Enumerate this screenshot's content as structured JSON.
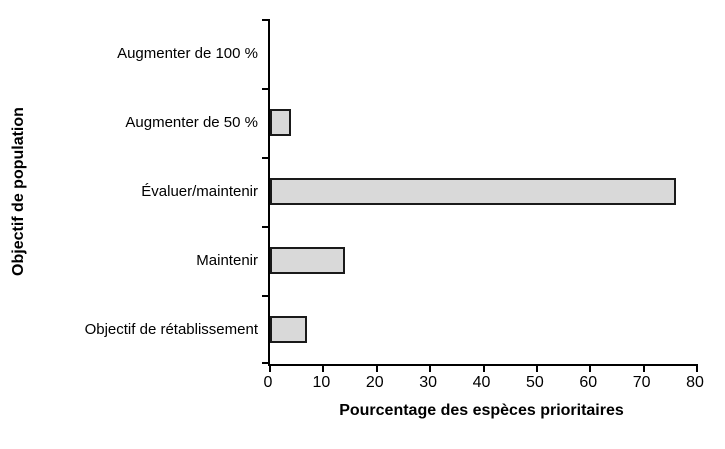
{
  "chart_data": {
    "type": "bar",
    "orientation": "horizontal",
    "title": "",
    "xlabel": "Pourcentage des espèces prioritaires",
    "ylabel": "Objectif de population",
    "categories": [
      "Augmenter de 100 %",
      "Augmenter de 50 %",
      "Évaluer/maintenir",
      "Maintenir",
      "Objectif de rétablissement"
    ],
    "values": [
      0,
      4,
      76,
      14,
      7
    ],
    "xlim": [
      0,
      80
    ],
    "xticks": [
      0,
      10,
      20,
      30,
      40,
      50,
      60,
      70,
      80
    ],
    "grid": false,
    "legend": false,
    "bar_fill_color": "#d9d9d9",
    "bar_border_color": "#1a1a1a",
    "axis_color": "#000000"
  }
}
